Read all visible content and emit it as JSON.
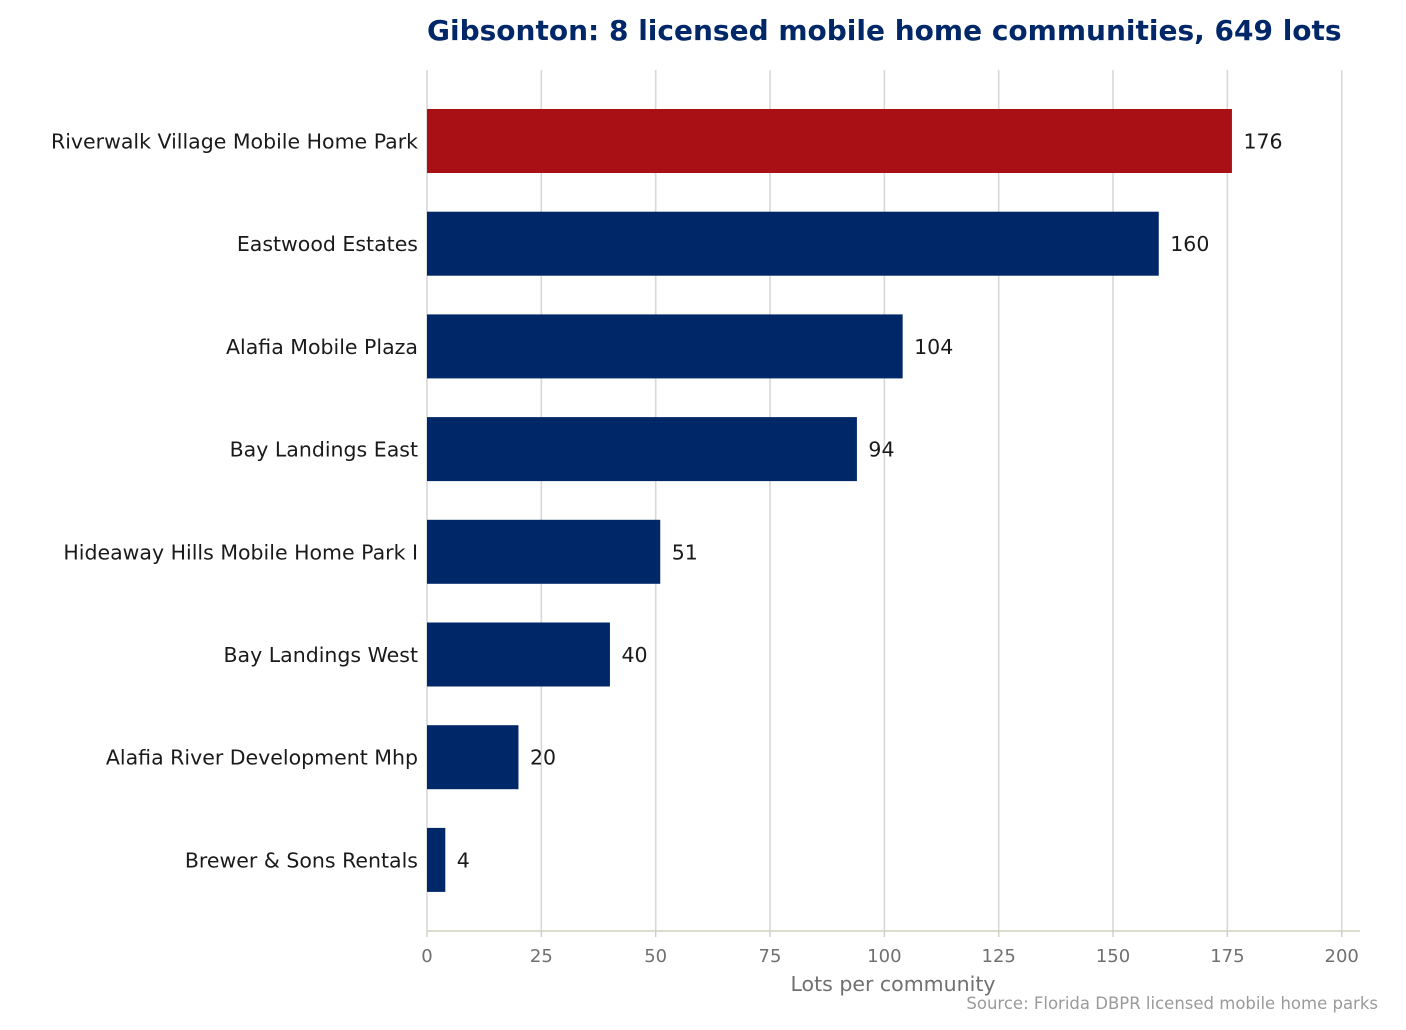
{
  "chart_data": {
    "type": "bar",
    "orientation": "horizontal",
    "title": "Gibsonton: 8 licensed mobile home communities, 649 lots",
    "xlabel": "Lots per community",
    "ylabel": "",
    "source": "Source: Florida DBPR licensed mobile home parks",
    "categories": [
      "Riverwalk Village Mobile Home Park",
      "Eastwood Estates",
      "Alafia Mobile Plaza",
      "Bay Landings East",
      "Hideaway Hills Mobile Home Park I",
      "Bay Landings West",
      "Alafia River Development Mhp",
      "Brewer & Sons Rentals"
    ],
    "values": [
      176,
      160,
      104,
      94,
      51,
      40,
      20,
      4
    ],
    "highlight_index": 0,
    "xlim": [
      0,
      204
    ],
    "xticks": [
      0,
      25,
      50,
      75,
      100,
      125,
      150,
      175,
      200
    ],
    "grid": "vertical",
    "legend": "none",
    "colors": {
      "highlight": "#a81015",
      "bar": "#002868",
      "title": "#002868",
      "category_text": "#1a1a1a",
      "value_text": "#1a1a1a",
      "tick_text": "#707070",
      "axis_label_text": "#707070",
      "source_text": "#9a9a9a",
      "grid": "#d8d8d8",
      "axis_line": "#cfcfc0"
    }
  }
}
